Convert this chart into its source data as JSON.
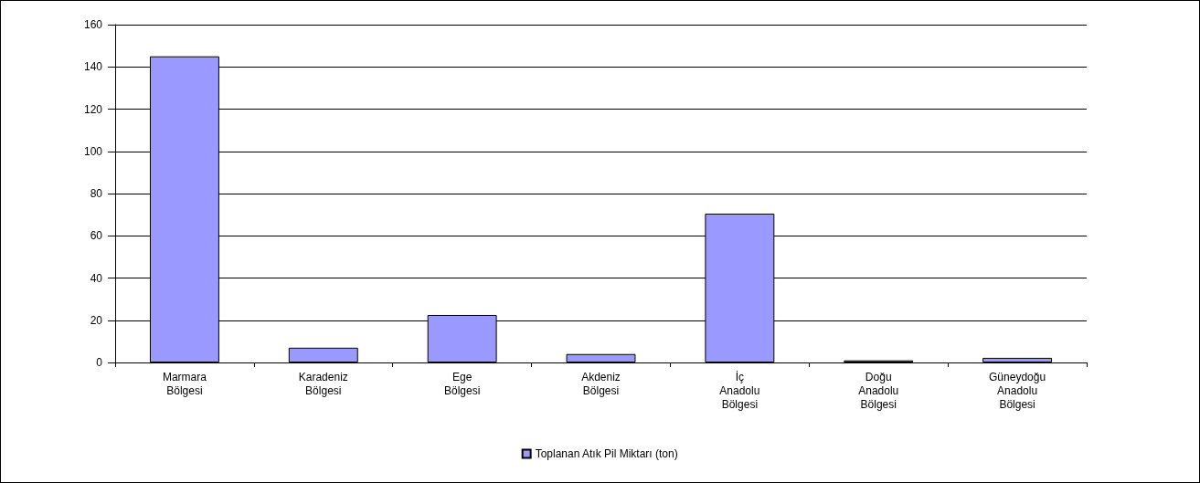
{
  "chart_data": {
    "type": "bar",
    "categories": [
      "Marmara Bölgesi",
      "Karadeniz Bölgesi",
      "Ege Bölgesi",
      "Akdeniz Bölgesi",
      "İç Anadolu Bölgesi",
      "Doğu Anadolu Bölgesi",
      "Güneydoğu Anadolu Bölgesi"
    ],
    "series": [
      {
        "name": "Toplanan Atık Pil Miktarı (ton)",
        "color": "#9999ff",
        "values": [
          145,
          7,
          22.5,
          4,
          70.5,
          1,
          2.2
        ]
      }
    ],
    "ylim": [
      0,
      160
    ],
    "yticks": [
      0,
      20,
      40,
      60,
      80,
      100,
      120,
      140,
      160
    ],
    "grid": "y",
    "legend": "bottom"
  }
}
